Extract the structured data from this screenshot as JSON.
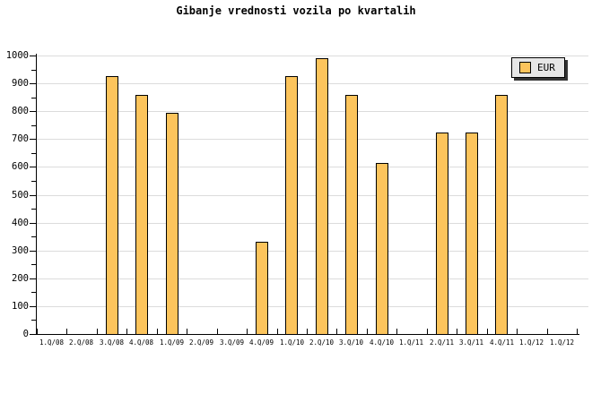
{
  "title": "Gibanje vrednosti vozila po kvartalih",
  "legend": {
    "position": "top-right",
    "items": [
      {
        "label": "EUR",
        "swatch_color": "#FCC45C"
      }
    ]
  },
  "colors": {
    "bar_fill": "#FCC45C",
    "bar_border": "#000000",
    "gridline": "#DCDCDC",
    "axis": "#000000",
    "legend_bg": "#E6E6E6",
    "legend_shadow": "#333333",
    "background": "#FFFFFF"
  },
  "chart_data": {
    "type": "bar",
    "title": "Gibanje vrednosti vozila po kvartalih",
    "categories": [
      "1.Q/08",
      "2.Q/08",
      "3.Q/08",
      "4.Q/08",
      "1.Q/09",
      "2.Q/09",
      "3.Q/09",
      "4.Q/09",
      "1.Q/10",
      "2.Q/10",
      "3.Q/10",
      "4.Q/10",
      "1.Q/11",
      "2.Q/11",
      "3.Q/11",
      "4.Q/11",
      "1.Q/12",
      "1.Q/12"
    ],
    "series": [
      {
        "name": "EUR",
        "color": "#FCC45C",
        "values": [
          0,
          0,
          925,
          860,
          795,
          0,
          0,
          330,
          925,
          990,
          860,
          615,
          0,
          725,
          725,
          860,
          0,
          0
        ]
      }
    ],
    "xlabel": "",
    "ylabel": "",
    "ylim": [
      0,
      1000
    ],
    "ytick_major": 100,
    "ytick_minor": 50,
    "grid": "horizontal",
    "legend_position": "top-right"
  }
}
